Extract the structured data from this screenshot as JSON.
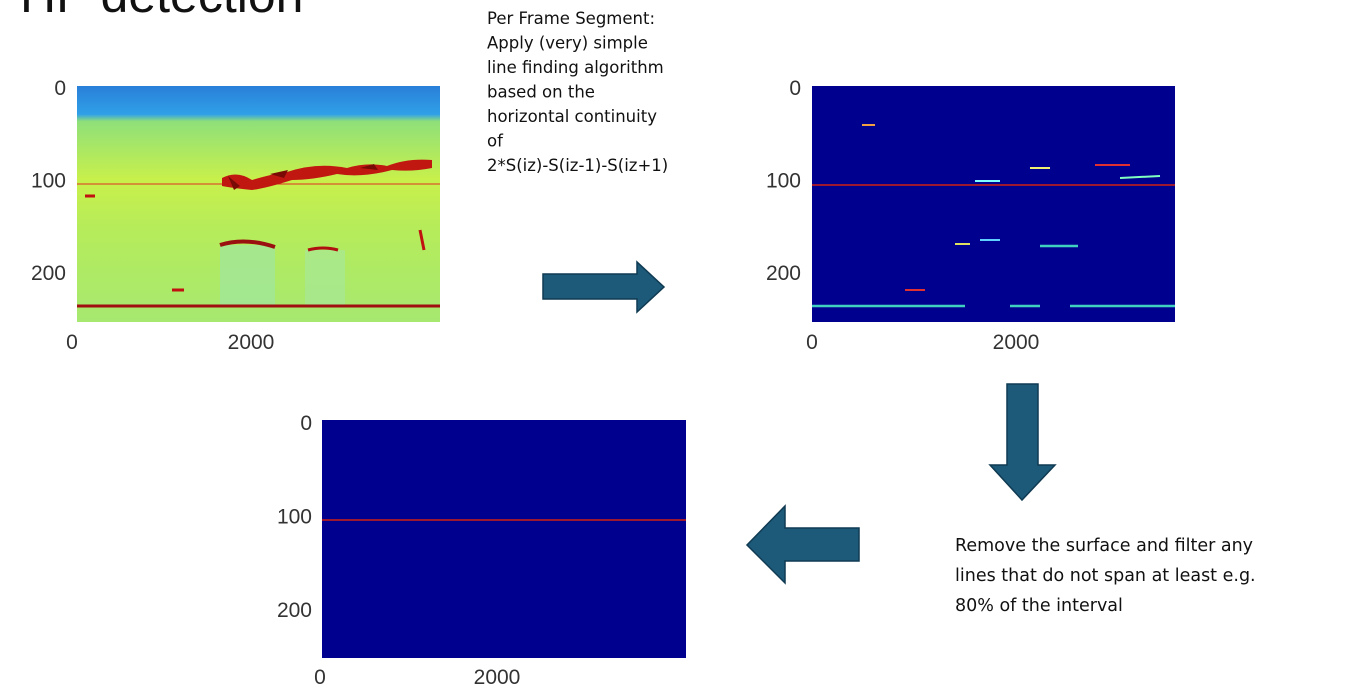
{
  "title": "HF detection",
  "step_note": {
    "lines": [
      "Per Frame Segment:",
      "Apply (very) simple",
      "line finding algorithm",
      "based on the",
      "horizontal continuity",
      "of",
      "2*S(iz)-S(iz-1)-S(iz+1)"
    ]
  },
  "filter_note": {
    "lines": [
      "Remove the surface and filter any",
      "lines that do not span at least e.g.",
      "80% of the interval"
    ]
  },
  "panels": [
    {
      "yticks": [
        0,
        100,
        200
      ],
      "xticks": [
        0,
        2000
      ]
    },
    {
      "yticks": [
        0,
        100,
        200
      ],
      "xticks": [
        0,
        2000
      ]
    },
    {
      "yticks": [
        0,
        100,
        200
      ],
      "xticks": [
        0,
        2000
      ]
    }
  ]
}
